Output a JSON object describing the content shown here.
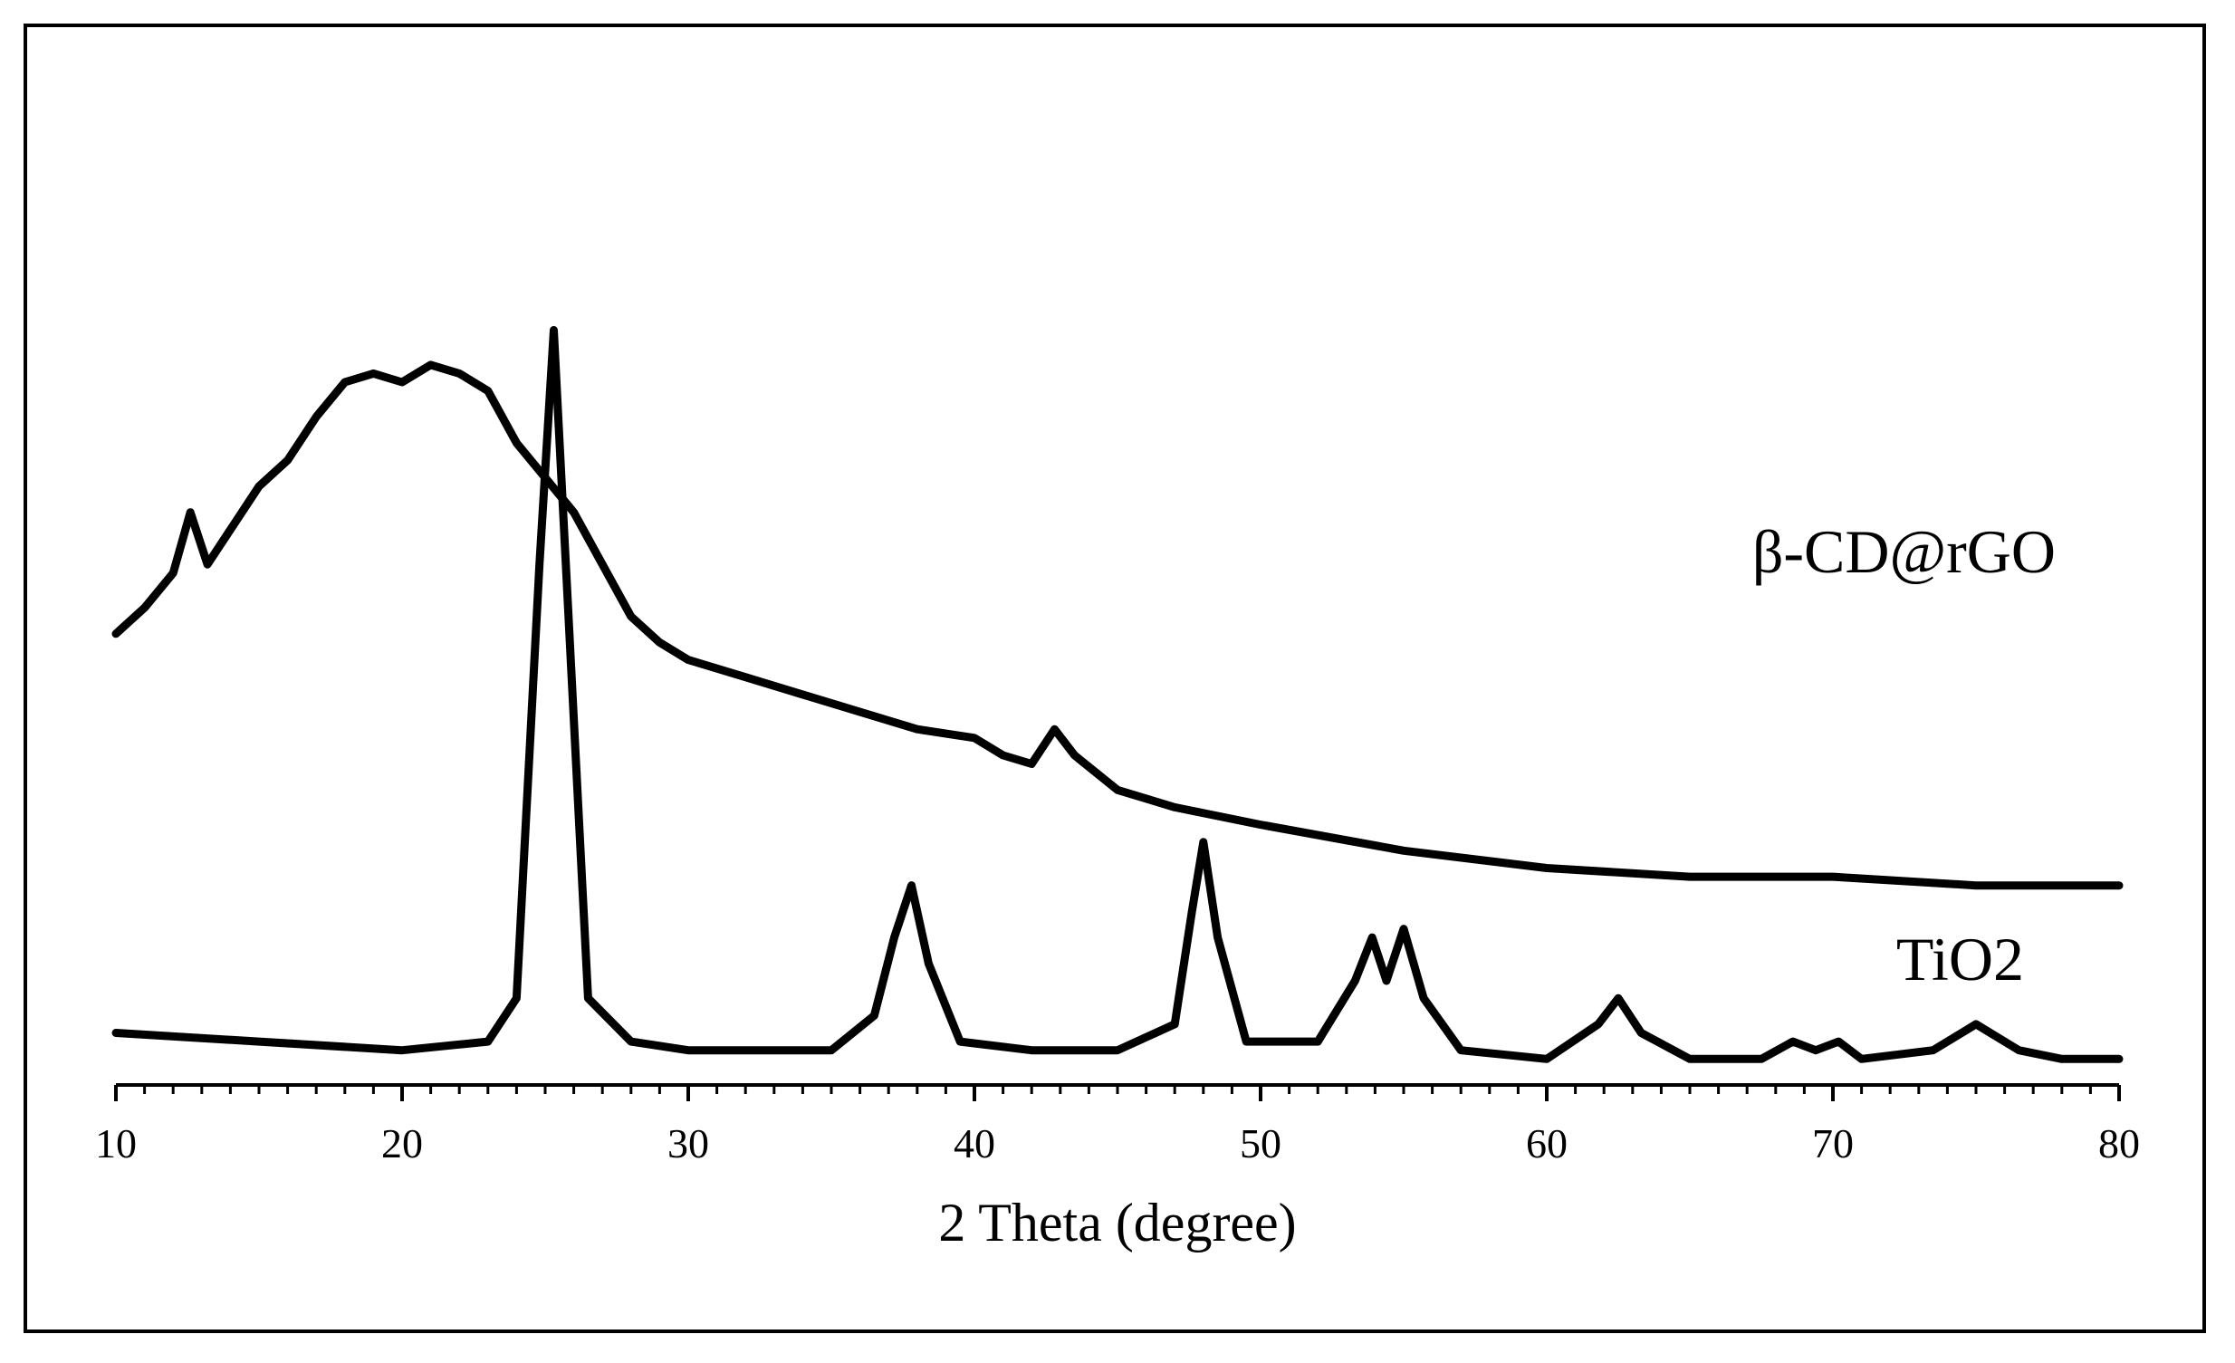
{
  "chart_data": {
    "type": "line",
    "title": "",
    "xlabel": "2 Theta (degree)",
    "ylabel": "",
    "xlim": [
      10,
      80
    ],
    "xticks": [
      10,
      20,
      30,
      40,
      50,
      60,
      70,
      80
    ],
    "y_axis_shown": false,
    "grid": false,
    "legend": "none (series labeled directly on plot)",
    "series": [
      {
        "name": "β-CD@rGO",
        "color": "#000000",
        "x": [
          10,
          11,
          12,
          12.6,
          13.2,
          14,
          15,
          16,
          17,
          18,
          19,
          20,
          21,
          22,
          23,
          24,
          25,
          26,
          27,
          28,
          29,
          30,
          32,
          34,
          36,
          38,
          40,
          41,
          42,
          42.8,
          43.5,
          45,
          47,
          50,
          55,
          60,
          65,
          70,
          75,
          80
        ],
        "y": [
          0.52,
          0.55,
          0.59,
          0.66,
          0.6,
          0.64,
          0.69,
          0.72,
          0.77,
          0.81,
          0.82,
          0.81,
          0.83,
          0.82,
          0.8,
          0.74,
          0.7,
          0.66,
          0.6,
          0.54,
          0.51,
          0.49,
          0.47,
          0.45,
          0.43,
          0.41,
          0.4,
          0.38,
          0.37,
          0.41,
          0.38,
          0.34,
          0.32,
          0.3,
          0.27,
          0.25,
          0.24,
          0.24,
          0.23,
          0.23
        ]
      },
      {
        "name": "TiO2",
        "color": "#000000",
        "x": [
          10,
          15,
          20,
          23,
          24,
          24.8,
          25.3,
          25.8,
          26.5,
          28,
          30,
          35,
          36.5,
          37.2,
          37.8,
          38.4,
          39.5,
          42,
          45,
          47,
          47.6,
          48.0,
          48.5,
          49.5,
          52,
          53.3,
          53.9,
          54.4,
          55.0,
          55.7,
          57,
          60,
          61.8,
          62.5,
          63.3,
          65,
          67.5,
          68.6,
          69.4,
          70.2,
          71,
          73.5,
          75,
          76.5,
          78,
          80
        ],
        "y": [
          0.06,
          0.05,
          0.04,
          0.05,
          0.1,
          0.6,
          0.87,
          0.55,
          0.1,
          0.05,
          0.04,
          0.04,
          0.08,
          0.17,
          0.23,
          0.14,
          0.05,
          0.04,
          0.04,
          0.07,
          0.2,
          0.28,
          0.17,
          0.05,
          0.05,
          0.12,
          0.17,
          0.12,
          0.18,
          0.1,
          0.04,
          0.03,
          0.07,
          0.1,
          0.06,
          0.03,
          0.03,
          0.05,
          0.04,
          0.05,
          0.03,
          0.04,
          0.07,
          0.04,
          0.03,
          0.03
        ]
      }
    ]
  }
}
